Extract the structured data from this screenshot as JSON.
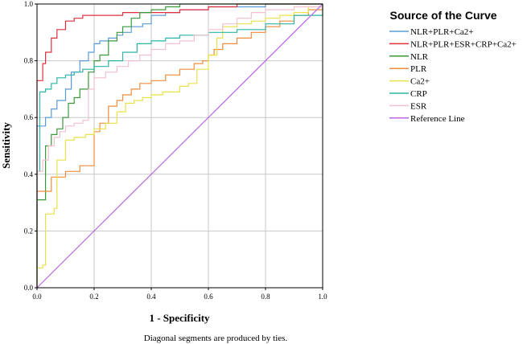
{
  "chart_data": {
    "type": "line",
    "xlabel": "1 - Specificity",
    "ylabel": "Sensitivity",
    "xlim": [
      0,
      1
    ],
    "ylim": [
      0,
      1
    ],
    "xticks": [
      0.0,
      0.2,
      0.4,
      0.6,
      0.8,
      1.0
    ],
    "yticks": [
      0.0,
      0.2,
      0.4,
      0.6,
      0.8,
      1.0
    ],
    "xtick_labels": [
      "0.0",
      "0.2",
      "0.4",
      "0.6",
      "0.8",
      "1.0"
    ],
    "ytick_labels": [
      "0.0",
      "0.2",
      "0.4",
      "0.6",
      "0.8",
      "1.0"
    ],
    "grid": true,
    "legend_title": "Source of the Curve",
    "legend_position": "right",
    "footnote": "Diagonal segments are produced by ties.",
    "series": [
      {
        "name": "NLR+PLR+Ca2+",
        "color": "#5b9bd5",
        "x": [
          0,
          0,
          0.03,
          0.03,
          0.05,
          0.07,
          0.1,
          0.12,
          0.15,
          0.18,
          0.2,
          0.22,
          0.25,
          0.28,
          0.3,
          0.33,
          0.37,
          0.4,
          0.45,
          0.5,
          0.6,
          0.7,
          0.8,
          0.9,
          1.0
        ],
        "y": [
          0,
          0.57,
          0.57,
          0.6,
          0.63,
          0.66,
          0.7,
          0.76,
          0.8,
          0.83,
          0.86,
          0.87,
          0.88,
          0.89,
          0.9,
          0.92,
          0.93,
          0.96,
          0.97,
          0.98,
          0.99,
          0.99,
          1.0,
          1.0,
          1.0
        ]
      },
      {
        "name": "NLR+PLR+ESR+CRP+Ca2+",
        "color": "#e0303c",
        "x": [
          0,
          0,
          0.01,
          0.02,
          0.03,
          0.05,
          0.07,
          0.1,
          0.13,
          0.16,
          0.2,
          0.3,
          0.4,
          0.5,
          0.6,
          0.7,
          0.8,
          0.9,
          1.0
        ],
        "y": [
          0,
          0.73,
          0.73,
          0.79,
          0.83,
          0.88,
          0.91,
          0.94,
          0.95,
          0.96,
          0.96,
          0.97,
          0.97,
          0.98,
          0.99,
          1.0,
          1.0,
          1.0,
          1.0
        ]
      },
      {
        "name": "NLR",
        "color": "#3a9a3a",
        "x": [
          0,
          0,
          0.03,
          0.03,
          0.05,
          0.07,
          0.09,
          0.11,
          0.13,
          0.15,
          0.18,
          0.2,
          0.22,
          0.25,
          0.28,
          0.3,
          0.33,
          0.36,
          0.4,
          0.45,
          0.5,
          0.6,
          0.7,
          0.8,
          0.9,
          1.0
        ],
        "y": [
          0,
          0.31,
          0.32,
          0.5,
          0.54,
          0.56,
          0.6,
          0.65,
          0.67,
          0.7,
          0.76,
          0.8,
          0.82,
          0.87,
          0.9,
          0.92,
          0.95,
          0.97,
          0.98,
          0.99,
          1.0,
          1.0,
          1.0,
          1.0,
          1.0,
          1.0
        ]
      },
      {
        "name": "PLR",
        "color": "#f08c3c",
        "x": [
          0,
          0,
          0.04,
          0.05,
          0.1,
          0.15,
          0.2,
          0.22,
          0.25,
          0.28,
          0.3,
          0.33,
          0.36,
          0.4,
          0.45,
          0.5,
          0.55,
          0.58,
          0.6,
          0.62,
          0.65,
          0.7,
          0.75,
          0.8,
          0.85,
          0.9,
          0.95,
          1.0
        ],
        "y": [
          0,
          0.34,
          0.34,
          0.39,
          0.41,
          0.43,
          0.55,
          0.58,
          0.64,
          0.66,
          0.68,
          0.7,
          0.72,
          0.73,
          0.75,
          0.77,
          0.79,
          0.8,
          0.82,
          0.84,
          0.86,
          0.88,
          0.9,
          0.92,
          0.94,
          0.96,
          0.98,
          1.0
        ]
      },
      {
        "name": "Ca2+",
        "color": "#e8e24a",
        "x": [
          0,
          0,
          0.02,
          0.03,
          0.06,
          0.07,
          0.1,
          0.13,
          0.17,
          0.2,
          0.24,
          0.28,
          0.31,
          0.34,
          0.37,
          0.4,
          0.44,
          0.48,
          0.5,
          0.53,
          0.56,
          0.6,
          0.63,
          0.65,
          0.7,
          0.75,
          0.8,
          0.85,
          0.9,
          0.95,
          1.0
        ],
        "y": [
          0,
          0.07,
          0.08,
          0.26,
          0.28,
          0.45,
          0.52,
          0.53,
          0.54,
          0.56,
          0.58,
          0.62,
          0.65,
          0.66,
          0.67,
          0.68,
          0.69,
          0.69,
          0.71,
          0.72,
          0.77,
          0.82,
          0.88,
          0.92,
          0.93,
          0.94,
          0.95,
          0.96,
          0.97,
          0.99,
          1.0
        ]
      },
      {
        "name": "CRP",
        "color": "#2ab5a5",
        "x": [
          0,
          0,
          0.01,
          0.03,
          0.05,
          0.07,
          0.1,
          0.13,
          0.16,
          0.2,
          0.25,
          0.3,
          0.35,
          0.4,
          0.45,
          0.5,
          0.6,
          0.7,
          0.8,
          0.9,
          1.0
        ],
        "y": [
          0,
          0.41,
          0.69,
          0.7,
          0.72,
          0.74,
          0.75,
          0.76,
          0.77,
          0.78,
          0.8,
          0.83,
          0.86,
          0.87,
          0.88,
          0.89,
          0.9,
          0.91,
          0.93,
          0.96,
          1.0
        ]
      },
      {
        "name": "ESR",
        "color": "#f2c0cf",
        "x": [
          0,
          0,
          0.02,
          0.04,
          0.06,
          0.08,
          0.1,
          0.13,
          0.16,
          0.18,
          0.2,
          0.24,
          0.28,
          0.32,
          0.36,
          0.4,
          0.45,
          0.5,
          0.55,
          0.6,
          0.65,
          0.7,
          0.75,
          0.8,
          0.9,
          1.0
        ],
        "y": [
          0,
          0.41,
          0.45,
          0.5,
          0.53,
          0.55,
          0.57,
          0.58,
          0.59,
          0.7,
          0.74,
          0.76,
          0.78,
          0.8,
          0.82,
          0.84,
          0.86,
          0.87,
          0.89,
          0.91,
          0.93,
          0.95,
          0.97,
          0.98,
          0.99,
          1.0
        ]
      },
      {
        "name": "Reference Line",
        "color": "#b865e8",
        "x": [
          0,
          1
        ],
        "y": [
          0,
          1
        ]
      }
    ]
  }
}
